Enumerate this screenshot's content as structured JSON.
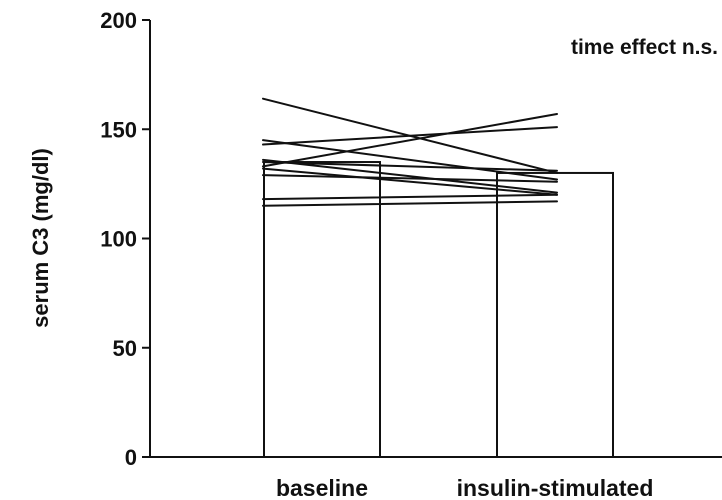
{
  "chart_data": {
    "type": "bar",
    "categories": [
      "baseline",
      "insulin-stimulated"
    ],
    "values": [
      135,
      130
    ],
    "ylabel": "serum C3 (mg/dl)",
    "xlabel": "",
    "ylim": [
      0,
      200
    ],
    "yticks": [
      0,
      50,
      100,
      150,
      200
    ],
    "annotation": "time effect n.s.",
    "series": [
      {
        "values": [
          164,
          130
        ]
      },
      {
        "values": [
          145,
          127
        ]
      },
      {
        "values": [
          143,
          151
        ]
      },
      {
        "values": [
          136,
          121
        ]
      },
      {
        "values": [
          135,
          131
        ]
      },
      {
        "values": [
          133,
          157
        ]
      },
      {
        "values": [
          132,
          120
        ]
      },
      {
        "values": [
          129,
          126
        ]
      },
      {
        "values": [
          118,
          120
        ]
      },
      {
        "values": [
          115,
          117
        ]
      }
    ],
    "colors": {
      "ink": "#111111",
      "bar_fill": "#ffffff"
    }
  }
}
